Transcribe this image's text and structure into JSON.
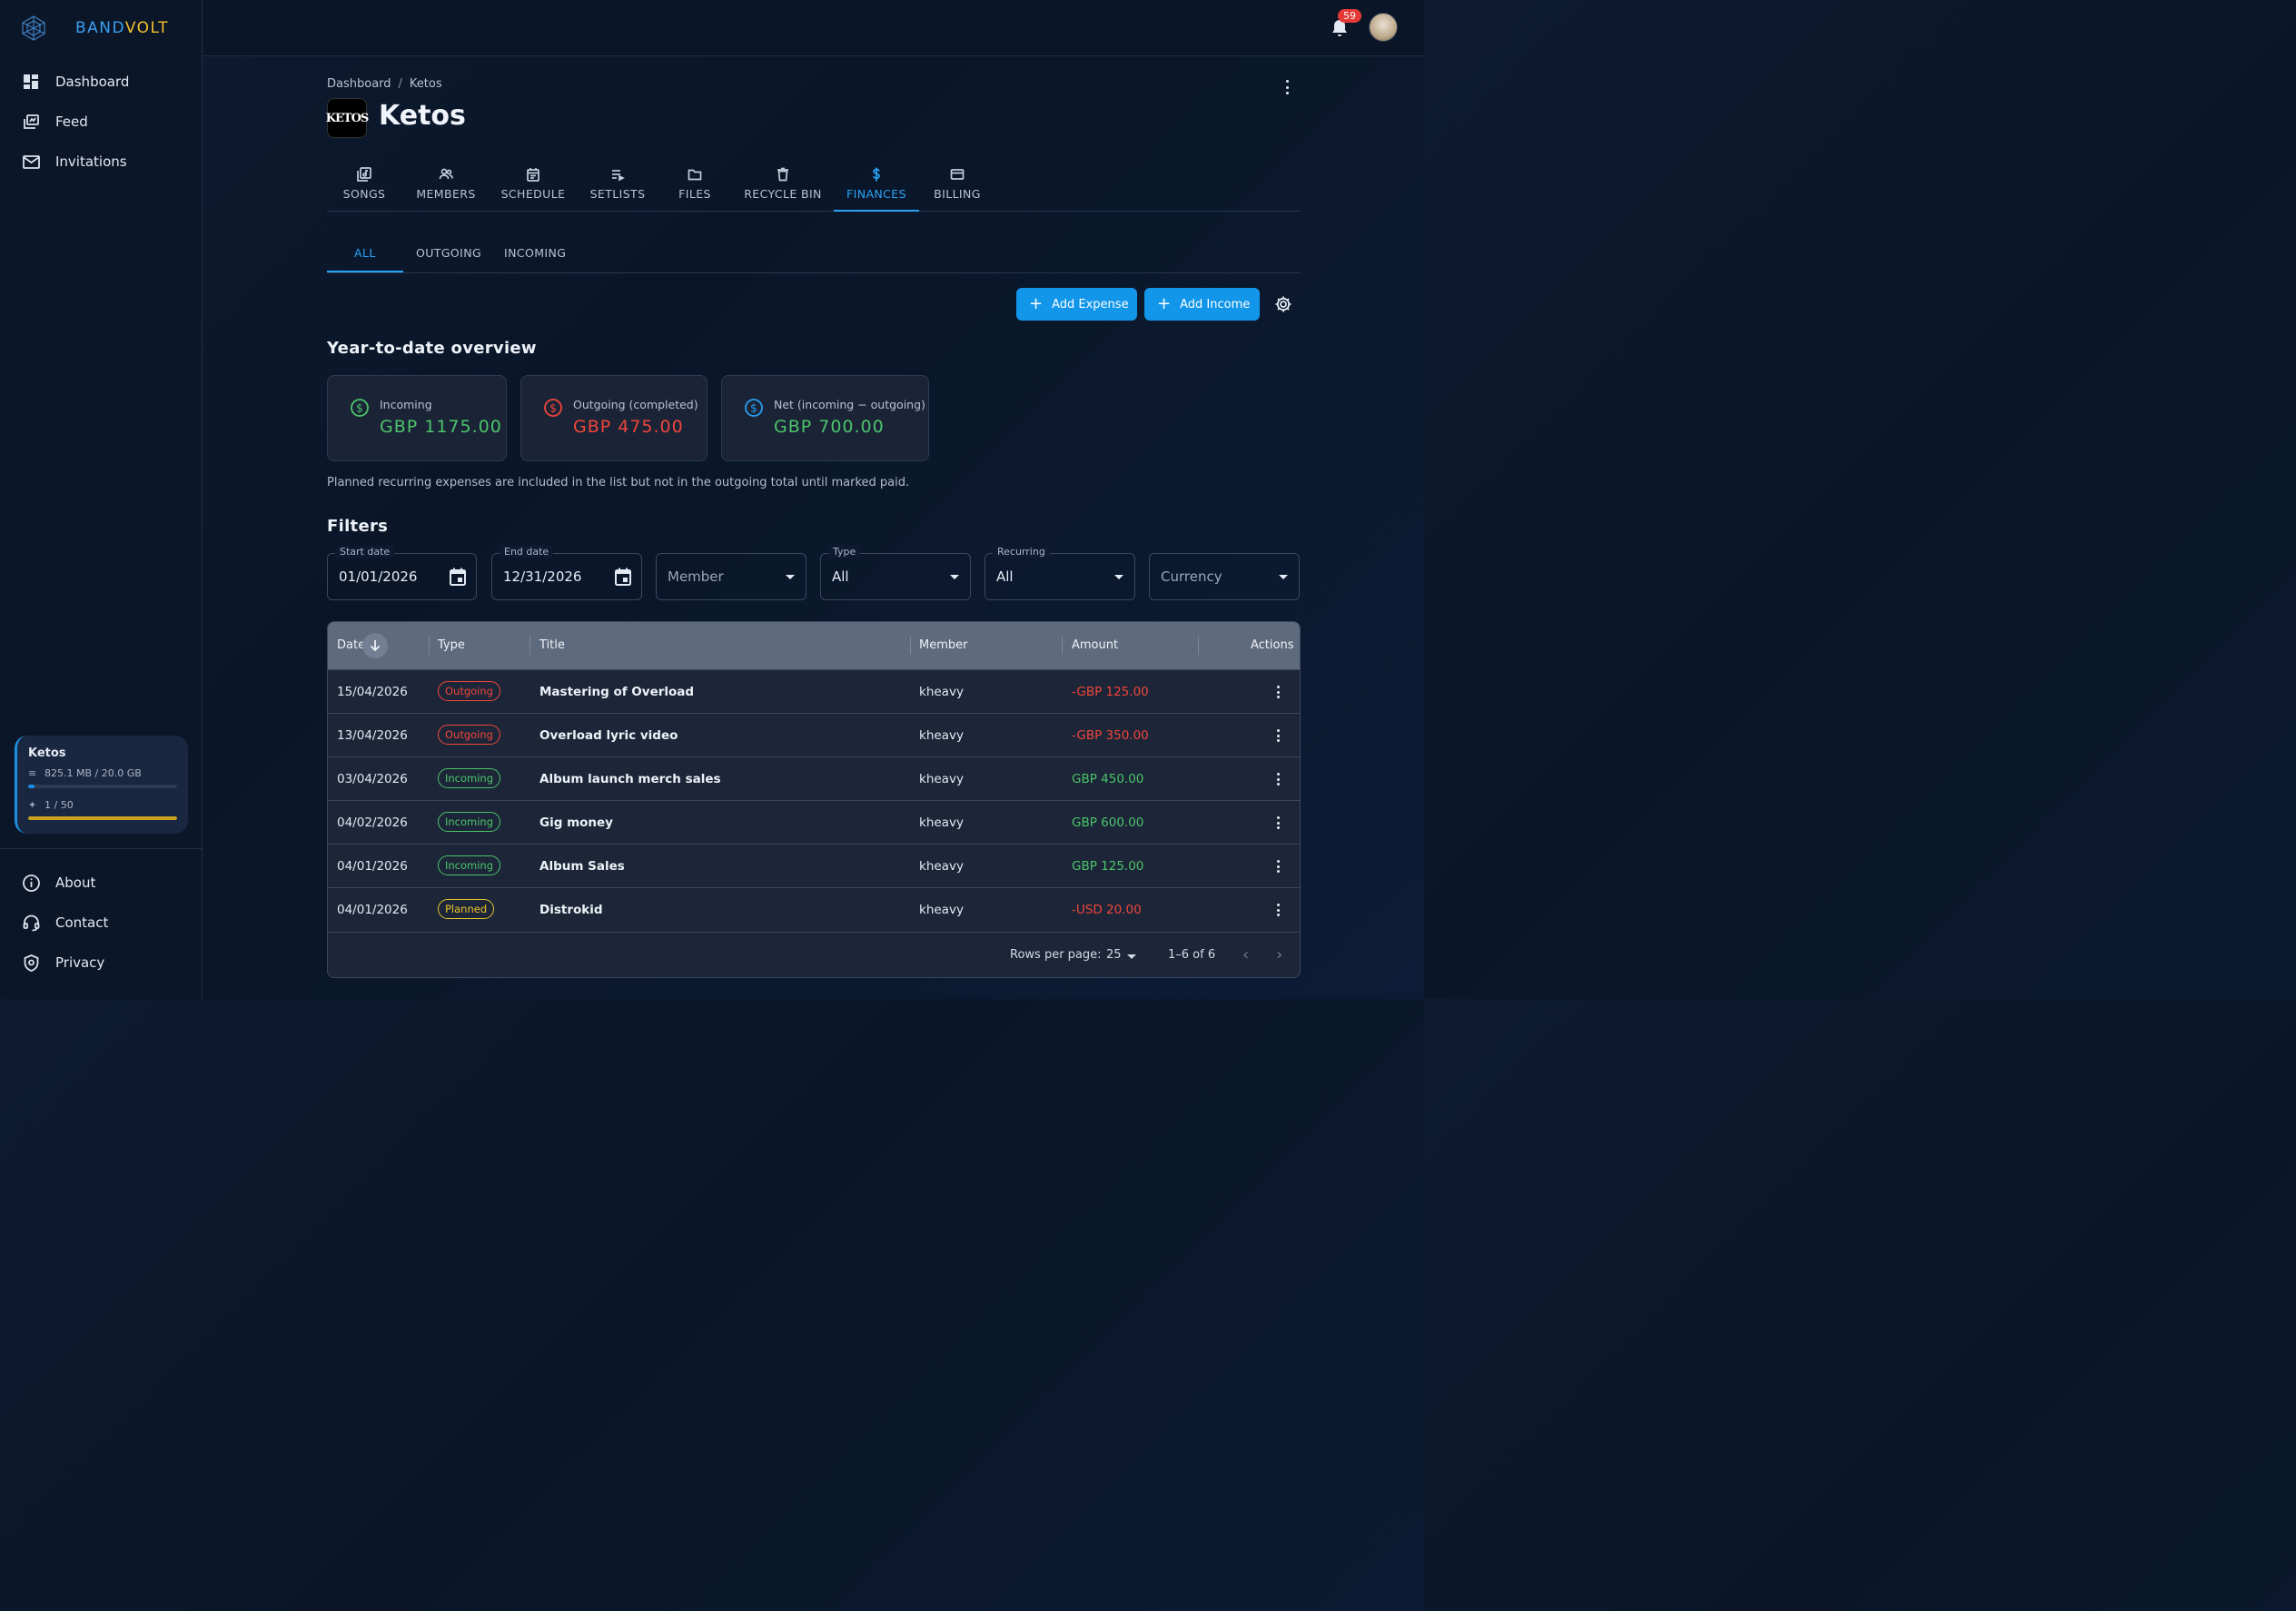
{
  "brand": {
    "name_part1": "BAND",
    "name_part2": "VOLT",
    "accent": "#1196ea",
    "accent2": "#f2c12e"
  },
  "sidebar": {
    "nav": [
      {
        "label": "Dashboard",
        "icon": "dashboard-icon"
      },
      {
        "label": "Feed",
        "icon": "feed-icon"
      },
      {
        "label": "Invitations",
        "icon": "mail-icon"
      }
    ],
    "band_card": {
      "name": "Ketos",
      "storage_text": "825.1 MB / 20.0 GB",
      "storage_fraction": 0.04,
      "ai_text": "1 / 50",
      "ai_fraction": 1.0
    },
    "bottom_nav": [
      {
        "label": "About",
        "icon": "info-icon"
      },
      {
        "label": "Contact",
        "icon": "support-icon"
      },
      {
        "label": "Privacy",
        "icon": "shield-icon"
      }
    ]
  },
  "topbar": {
    "notification_count": "59"
  },
  "breadcrumb": {
    "root": "Dashboard",
    "separator": "/",
    "current": "Ketos"
  },
  "band": {
    "logo_text": "KETOS",
    "title": "Ketos"
  },
  "tabs": [
    {
      "label": "SONGS",
      "icon": "music-library-icon"
    },
    {
      "label": "MEMBERS",
      "icon": "members-icon"
    },
    {
      "label": "SCHEDULE",
      "icon": "calendar-icon"
    },
    {
      "label": "SETLISTS",
      "icon": "playlist-icon"
    },
    {
      "label": "FILES",
      "icon": "folder-icon"
    },
    {
      "label": "RECYCLE BIN",
      "icon": "trash-icon"
    },
    {
      "label": "FINANCES",
      "icon": "dollar-icon",
      "active": true
    },
    {
      "label": "BILLING",
      "icon": "credit-card-icon"
    }
  ],
  "subtabs": [
    {
      "label": "ALL",
      "active": true
    },
    {
      "label": "OUTGOING"
    },
    {
      "label": "INCOMING"
    }
  ],
  "actions": {
    "add_expense": "Add Expense",
    "add_income": "Add Income"
  },
  "overview": {
    "title": "Year-to-date overview",
    "cards": [
      {
        "label": "Incoming",
        "value": "GBP 1175.00",
        "color": "#4cc46a"
      },
      {
        "label": "Outgoing (completed)",
        "value": "GBP 475.00",
        "color": "#f0453a"
      },
      {
        "label": "Net (incoming − outgoing)",
        "value": "GBP 700.00",
        "color": "#4cc46a"
      }
    ],
    "note": "Planned recurring expenses are included in the list but not in the outgoing total until marked paid."
  },
  "filters": {
    "title": "Filters",
    "start_date": {
      "label": "Start date",
      "value": "01/01/2026"
    },
    "end_date": {
      "label": "End date",
      "value": "12/31/2026"
    },
    "member": {
      "placeholder": "Member"
    },
    "type": {
      "label": "Type",
      "value": "All"
    },
    "recurring": {
      "label": "Recurring",
      "value": "All"
    },
    "currency": {
      "placeholder": "Currency"
    }
  },
  "table": {
    "columns": {
      "date": "Date",
      "type": "Type",
      "title": "Title",
      "member": "Member",
      "amount": "Amount",
      "actions": "Actions"
    },
    "rows": [
      {
        "date": "15/04/2026",
        "type": "Outgoing",
        "title": "Mastering of Overload",
        "member": "kheavy",
        "amount": "-GBP 125.00"
      },
      {
        "date": "13/04/2026",
        "type": "Outgoing",
        "title": "Overload lyric video",
        "member": "kheavy",
        "amount": "-GBP 350.00"
      },
      {
        "date": "03/04/2026",
        "type": "Incoming",
        "title": "Album launch merch sales",
        "member": "kheavy",
        "amount": "GBP 450.00"
      },
      {
        "date": "04/02/2026",
        "type": "Incoming",
        "title": "Gig money",
        "member": "kheavy",
        "amount": "GBP 600.00"
      },
      {
        "date": "04/01/2026",
        "type": "Incoming",
        "title": "Album Sales",
        "member": "kheavy",
        "amount": "GBP 125.00"
      },
      {
        "date": "04/01/2026",
        "type": "Planned",
        "title": "Distrokid",
        "member": "kheavy",
        "amount": "-USD 20.00"
      }
    ],
    "type_colors": {
      "Outgoing": "#f0453a",
      "Incoming": "#4cc46a",
      "Planned": "#e8c42a"
    },
    "footer": {
      "rows_per_page_label": "Rows per page:",
      "rows_per_page": "25",
      "range": "1–6 of 6"
    }
  }
}
